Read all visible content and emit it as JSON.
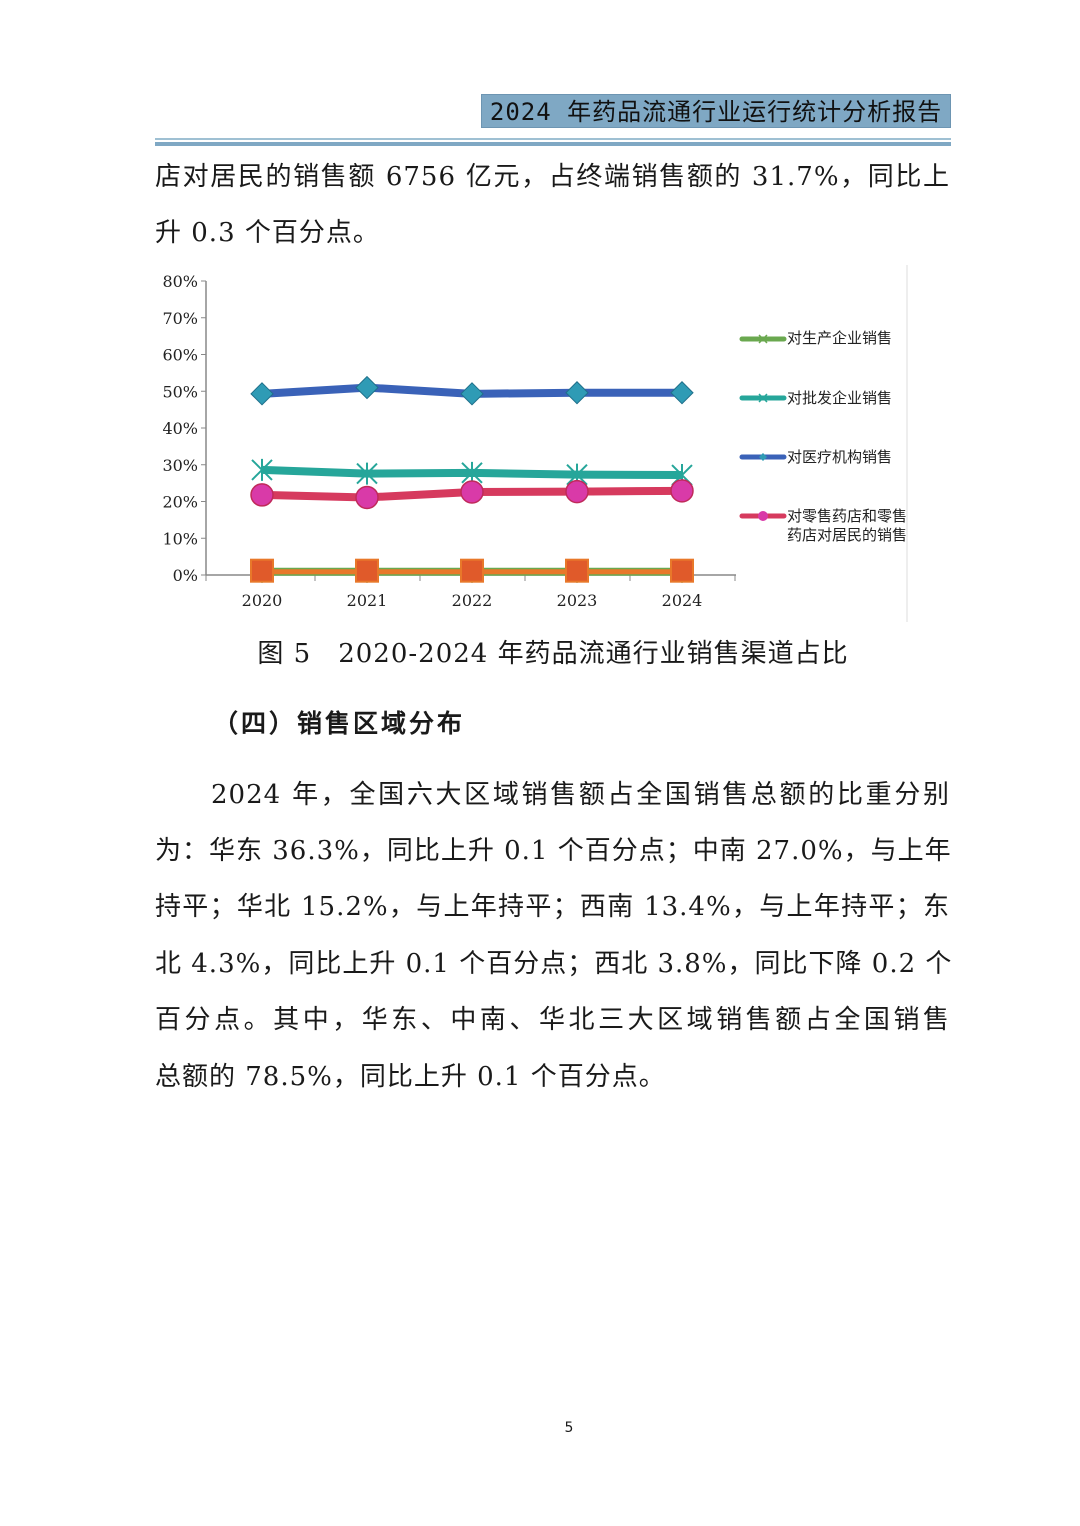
{
  "header": {
    "title": "2024 年药品流通行业运行统计分析报告"
  },
  "paragraph1": {
    "lines": [
      "店对居民的销售额 6756 亿元，占终端销售额的 31.7%，同比上",
      "升 0.3 个百分点。"
    ]
  },
  "figure": {
    "caption": "图 5　2020-2024 年药品流通行业销售渠道占比"
  },
  "section": {
    "heading": "（四）销售区域分布"
  },
  "paragraph2": {
    "lines": [
      "2024 年，全国六大区域销售额占全国销售总额的比重分别",
      "为：华东 36.3%，同比上升 0.1 个百分点；中南 27.0%，与上年",
      "持平；华北 15.2%，与上年持平；西南 13.4%，与上年持平；东",
      "北 4.3%，同比上升 0.1 个百分点；西北 3.8%，同比下降 0.2 个",
      "百分点。其中，华东、中南、华北三大区域销售额占全国销售",
      "总额的 78.5%，同比上升 0.1 个百分点。"
    ]
  },
  "page_number": "5",
  "chart_data": {
    "type": "line",
    "categories": [
      "2020",
      "2021",
      "2022",
      "2023",
      "2024"
    ],
    "ylim": [
      0,
      80
    ],
    "yticks": [
      "0%",
      "10%",
      "20%",
      "30%",
      "40%",
      "50%",
      "60%",
      "70%",
      "80%"
    ],
    "grid": false,
    "legend_placement": "right",
    "series": [
      {
        "name": "对生产企业销售",
        "values": [
          0.9,
          0.9,
          0.9,
          0.9,
          0.9
        ],
        "color": "#6aa84f",
        "marker": "star"
      },
      {
        "name": "对批发企业销售",
        "values": [
          28.6,
          27.6,
          27.8,
          27.3,
          27.2
        ],
        "color": "#26a69a",
        "marker": "star"
      },
      {
        "name": "对医疗机构销售",
        "values": [
          49.3,
          51.0,
          49.3,
          49.6,
          49.6
        ],
        "color": "#3a62b8",
        "marker": "diamond"
      },
      {
        "name": "对零售药店和零售药店对居民的销售",
        "values": [
          21.8,
          21.1,
          22.6,
          22.7,
          22.9
        ],
        "color": "#d63a5e",
        "marker": "circle"
      },
      {
        "values": [
          0.9,
          0.9,
          0.9,
          0.9,
          0.9
        ],
        "color": "#e8782a",
        "marker": "square"
      }
    ]
  }
}
